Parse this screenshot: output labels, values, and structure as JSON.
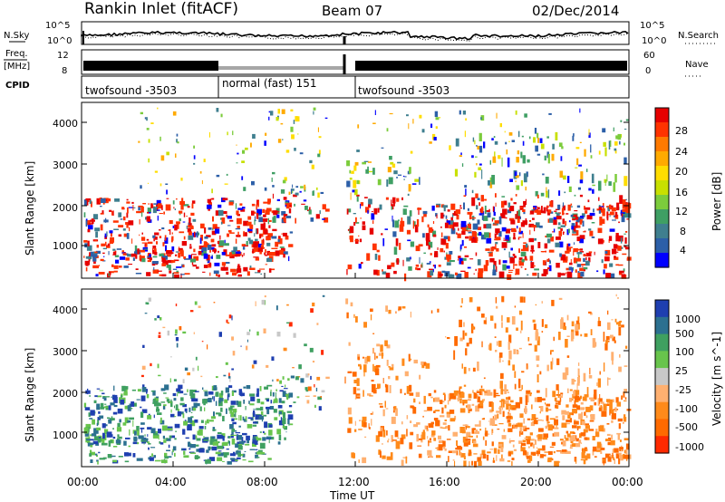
{
  "header": {
    "station": "Rankin Inlet (fitACF)",
    "beam": "Beam 07",
    "date": "02/Dec/2014"
  },
  "top_panel": {
    "left_label_nsky": "N.Sky",
    "left_label_freq_1": "Freq.",
    "left_label_freq_2": "[MHz]",
    "left_label_cpid": "CPID",
    "right_label_nsearch": "N.Search",
    "right_label_nave": "Nave",
    "noise_left_ticks": [
      "10^5",
      "10^0"
    ],
    "noise_right_ticks": [
      "10^5",
      "10^0"
    ],
    "freq_left_ticks": [
      "12",
      "8"
    ],
    "nave_right_ticks": [
      "60",
      "0"
    ],
    "freq_range_mhz": [
      8,
      12
    ],
    "nave_range": [
      0,
      60
    ],
    "cpid_segments": [
      {
        "label": "twofsound -3503",
        "start_h": 0,
        "end_h": 6
      },
      {
        "label": "normal (fast) 151",
        "start_h": 6,
        "end_h": 12
      },
      {
        "label": "twofsound -3503",
        "start_h": 12,
        "end_h": 24
      }
    ]
  },
  "power_panel": {
    "ylabel": "Slant Range [km]",
    "yticks": [
      "4000",
      "3000",
      "2000",
      "1000"
    ],
    "colorbar_label": "Power [dB]",
    "colorbar_ticks": [
      "28",
      "24",
      "20",
      "16",
      "12",
      "8",
      "4"
    ],
    "colorbar_colors": [
      "#e60000",
      "#ff3300",
      "#ff7a00",
      "#ffaa00",
      "#ffdd00",
      "#c8e000",
      "#7ccc3c",
      "#3f9f64",
      "#3f7f8f",
      "#2c5fa8",
      "#0000ff"
    ]
  },
  "velocity_panel": {
    "ylabel": "Slant Range [km]",
    "yticks": [
      "4000",
      "3000",
      "2000",
      "1000"
    ],
    "colorbar_label": "Velocity [m s^-1]",
    "colorbar_ticks": [
      "1000",
      "500",
      "100",
      "25",
      "-25",
      "-100",
      "-500",
      "-1000"
    ],
    "colorbar_colors": [
      "#1f3fb0",
      "#2c7090",
      "#3fa060",
      "#68c44c",
      "#c8c8c8",
      "#ffb070",
      "#ff8a1a",
      "#ff6a00",
      "#ff2a00"
    ]
  },
  "xaxis": {
    "label": "Time UT",
    "ticks": [
      "00:00",
      "04:00",
      "08:00",
      "12:00",
      "16:00",
      "20:00",
      "00:00"
    ]
  },
  "chart_data": [
    {
      "type": "line",
      "title": "Rankin Inlet (fitACF)",
      "subtitle": "Beam 07",
      "xlabel": "Time UT",
      "x_range_hours": [
        0,
        24
      ],
      "series": [
        {
          "name": "N.Sky",
          "y_scale": "log",
          "y_range": [
            1,
            100000
          ]
        },
        {
          "name": "N.Search",
          "y_scale": "log",
          "y_range": [
            1,
            100000
          ]
        },
        {
          "name": "Freq.",
          "units": "MHz",
          "y_range": [
            8,
            12
          ]
        },
        {
          "name": "Nave",
          "y_range": [
            0,
            60
          ]
        }
      ]
    },
    {
      "type": "heatmap",
      "xlabel": "Time UT",
      "ylabel": "Slant Range [km]",
      "x_range_hours": [
        0,
        24
      ],
      "y_range_km": [
        180,
        4500
      ],
      "colorbar": "Power [dB]",
      "color_range": [
        0,
        30
      ]
    },
    {
      "type": "heatmap",
      "xlabel": "Time UT",
      "ylabel": "Slant Range [km]",
      "x_range_hours": [
        0,
        24
      ],
      "y_range_km": [
        180,
        4500
      ],
      "colorbar": "Velocity [m s^-1]",
      "color_range": [
        -1000,
        1000
      ]
    }
  ]
}
